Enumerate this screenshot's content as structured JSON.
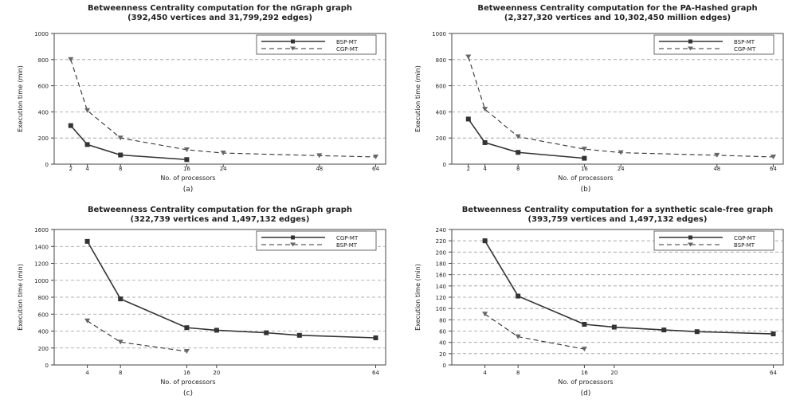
{
  "chart_data": [
    {
      "type": "line",
      "panel": "(a)",
      "title": "Betweenness Centrality computation for the nGraph graph",
      "subtitle": "(392,450 vertices and 31,799,292 edges)",
      "xlabel": "No. of processors",
      "ylabel": "Execution time (min)",
      "ylim": [
        0,
        1000
      ],
      "yticks": [
        0,
        200,
        400,
        600,
        800,
        1000
      ],
      "x_ticks": [
        2,
        4,
        8,
        16,
        24,
        48,
        64
      ],
      "legend_position": "top-right",
      "series": [
        {
          "name": "BSP-MT",
          "style": "solid",
          "x": [
            2,
            4,
            8,
            16
          ],
          "values": [
            295,
            150,
            70,
            35
          ]
        },
        {
          "name": "CGP-MT",
          "style": "dashed",
          "x": [
            2,
            4,
            8,
            16,
            24,
            48,
            64
          ],
          "values": [
            800,
            410,
            200,
            110,
            85,
            65,
            55
          ]
        }
      ]
    },
    {
      "type": "line",
      "panel": "(b)",
      "title": "Betweenness Centrality computation for the PA-Hashed graph",
      "subtitle": "(2,327,320 vertices and 10,302,450 million edges)",
      "xlabel": "No. of processors",
      "ylabel": "Execution time (min)",
      "ylim": [
        0,
        1000
      ],
      "yticks": [
        0,
        200,
        400,
        600,
        800,
        1000
      ],
      "x_ticks": [
        2,
        4,
        8,
        16,
        24,
        48,
        64
      ],
      "legend_position": "top-right",
      "series": [
        {
          "name": "BSP-MT",
          "style": "solid",
          "x": [
            2,
            4,
            8,
            16
          ],
          "values": [
            345,
            165,
            90,
            45
          ]
        },
        {
          "name": "CGP-MT",
          "style": "dashed",
          "x": [
            2,
            4,
            8,
            16,
            24,
            48,
            64
          ],
          "values": [
            820,
            420,
            210,
            115,
            88,
            68,
            55
          ]
        }
      ]
    },
    {
      "type": "line",
      "panel": "(c)",
      "title": "Betweenness Centrality computation for the nGraph graph",
      "subtitle": "(322,739 vertices and 1,497,132 edges)",
      "xlabel": "No. of processors",
      "ylabel": "Execution time (min)",
      "ylim": [
        0,
        1600
      ],
      "yticks": [
        0,
        200,
        400,
        600,
        800,
        1000,
        1200,
        1400,
        1600
      ],
      "x_ticks": [
        4,
        8,
        16,
        20,
        64
      ],
      "legend_position": "top-right",
      "series": [
        {
          "name": "CGP-MT",
          "style": "solid",
          "x": [
            4,
            8,
            16,
            20,
            32,
            48,
            64
          ],
          "values": [
            1460,
            780,
            440,
            410,
            380,
            350,
            320
          ]
        },
        {
          "name": "BSP-MT",
          "style": "dashed",
          "x": [
            4,
            8,
            16
          ],
          "values": [
            520,
            270,
            160
          ]
        }
      ]
    },
    {
      "type": "line",
      "panel": "(d)",
      "title": "Betweenness Centrality computation for a synthetic scale-free graph",
      "subtitle": "(393,759 vertices and 1,497,132 edges)",
      "xlabel": "No. of processors",
      "ylabel": "Execution time (min)",
      "ylim": [
        0,
        240
      ],
      "yticks": [
        0,
        20,
        40,
        60,
        80,
        100,
        120,
        140,
        160,
        180,
        200,
        220,
        240
      ],
      "x_ticks": [
        4,
        8,
        16,
        20,
        64
      ],
      "legend_position": "top-right",
      "series": [
        {
          "name": "CGP-MT",
          "style": "solid",
          "x": [
            4,
            8,
            16,
            20,
            32,
            48,
            64
          ],
          "values": [
            220,
            122,
            72,
            67,
            62,
            59,
            55
          ]
        },
        {
          "name": "BSP-MT",
          "style": "dashed",
          "x": [
            4,
            8,
            16
          ],
          "values": [
            90,
            50,
            28
          ]
        }
      ]
    }
  ]
}
